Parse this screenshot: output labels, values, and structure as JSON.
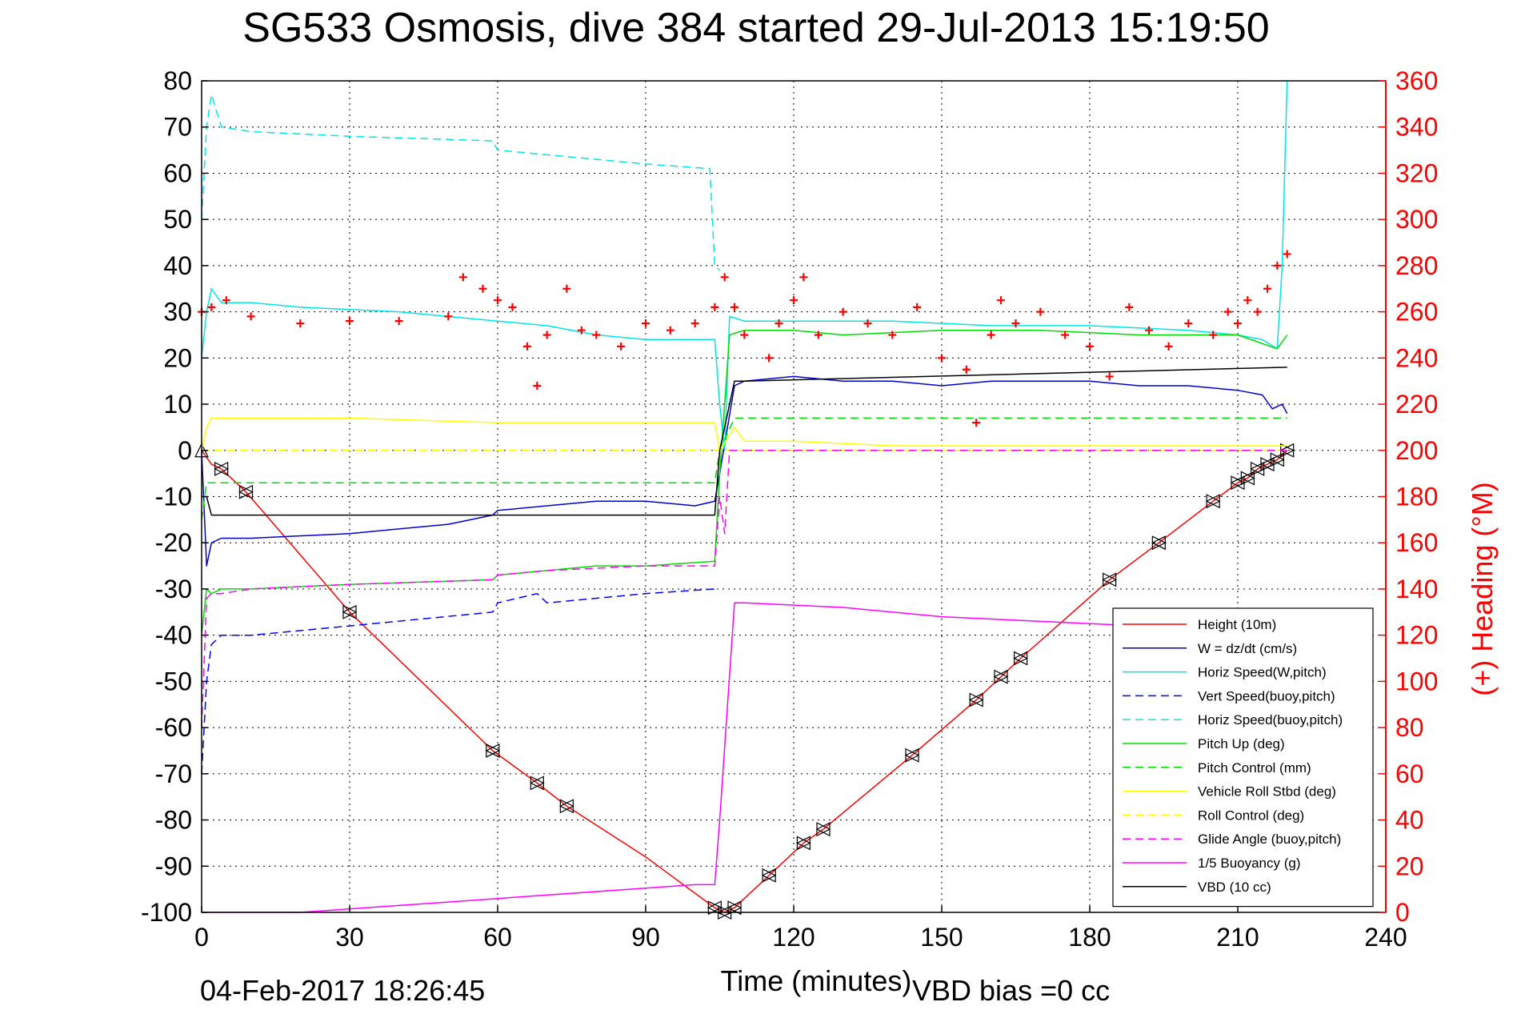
{
  "chart_data": {
    "type": "line",
    "title": "SG533 Osmosis, dive 384 started 29-Jul-2013 15:19:50",
    "xlabel": "Time (minutes)",
    "ylabel": "",
    "y2label": "(+) Heading (°M)",
    "xlim": [
      0,
      240
    ],
    "ylim": [
      -100,
      80
    ],
    "y2lim": [
      0,
      360
    ],
    "xticks": [
      "0",
      "30",
      "60",
      "90",
      "120",
      "150",
      "180",
      "210",
      "240"
    ],
    "yticks": [
      "80",
      "70",
      "60",
      "50",
      "40",
      "30",
      "20",
      "10",
      "0",
      "-10",
      "-20",
      "-30",
      "-40",
      "-50",
      "-60",
      "-70",
      "-80",
      "-90",
      "-100"
    ],
    "y2ticks": [
      "360",
      "340",
      "320",
      "300",
      "280",
      "260",
      "240",
      "220",
      "200",
      "180",
      "160",
      "140",
      "120",
      "100",
      "80",
      "60",
      "40",
      "20",
      "0"
    ],
    "grid": true,
    "legend_position": "bottom-right",
    "footer_date": "04-Feb-2017 18:26:45",
    "footer_note": "VBD bias =0 cc",
    "series": [
      {
        "name": "Height (10m)",
        "color": "#ff0000",
        "style": "solid",
        "x": [
          0,
          2,
          4,
          9,
          30,
          59,
          68,
          74,
          90,
          104,
          106,
          108,
          115,
          122,
          126,
          144,
          157,
          162,
          166,
          184,
          194,
          205,
          210,
          212,
          214,
          216,
          218,
          220
        ],
        "y": [
          0,
          -3,
          -4,
          -9,
          -35,
          -65,
          -72,
          -77,
          -88,
          -99,
          -100,
          -99,
          -92,
          -85,
          -82,
          -66,
          -54,
          -49,
          -45,
          -28,
          -20,
          -11,
          -7,
          -6,
          -4,
          -3,
          -2,
          0
        ]
      },
      {
        "name": "W = dz/dt (cm/s)",
        "color": "#0000cc",
        "style": "solid",
        "x": [
          0,
          1,
          2,
          4,
          10,
          30,
          50,
          59,
          60,
          70,
          80,
          90,
          100,
          104,
          105,
          108,
          110,
          120,
          130,
          140,
          150,
          160,
          170,
          180,
          190,
          200,
          210,
          215,
          217,
          219,
          220
        ],
        "y": [
          0,
          -25,
          -20,
          -19,
          -19,
          -18,
          -16,
          -14,
          -13,
          -12,
          -11,
          -11,
          -12,
          -11,
          -5,
          14,
          15,
          16,
          15,
          15,
          14,
          15,
          15,
          15,
          14,
          14,
          13,
          12,
          9,
          10,
          8
        ]
      },
      {
        "name": "Horiz Speed(W,pitch)",
        "color": "#00e6e6",
        "style": "solid",
        "x": [
          0,
          1,
          2,
          4,
          10,
          20,
          40,
          60,
          70,
          80,
          90,
          100,
          104,
          105,
          106,
          107,
          110,
          120,
          140,
          160,
          180,
          200,
          210,
          215,
          218,
          219,
          220
        ],
        "y": [
          20,
          30,
          35,
          32,
          32,
          31,
          30,
          28,
          27,
          25,
          24,
          24,
          24,
          10,
          0,
          29,
          28,
          28,
          28,
          27,
          27,
          26,
          25,
          24,
          22,
          40,
          80
        ]
      },
      {
        "name": "Vert Speed(buoy,pitch)",
        "color": "#0000ff",
        "style": "dashed",
        "x": [
          0,
          1,
          2,
          4,
          10,
          30,
          59,
          60,
          68,
          70,
          80,
          90,
          104
        ],
        "y": [
          -70,
          -50,
          -42,
          -40,
          -40,
          -38,
          -35,
          -33,
          -31,
          -33,
          -32,
          -31,
          -30
        ]
      },
      {
        "name": "Horiz Speed(buoy,pitch)",
        "color": "#00e6e6",
        "style": "dashed",
        "x": [
          0,
          1,
          2,
          4,
          10,
          30,
          59,
          60,
          70,
          80,
          90,
          103,
          104,
          105
        ],
        "y": [
          50,
          70,
          77,
          70,
          69,
          68,
          67,
          65,
          64,
          63,
          62,
          61,
          40,
          39
        ]
      },
      {
        "name": "Pitch Up (deg)",
        "color": "#00dd00",
        "style": "solid",
        "x": [
          0,
          1,
          2,
          4,
          10,
          30,
          59,
          60,
          70,
          80,
          90,
          104,
          105,
          107,
          110,
          120,
          130,
          150,
          170,
          190,
          210,
          218,
          220
        ],
        "y": [
          -40,
          -30,
          -31,
          -30,
          -30,
          -29,
          -28,
          -27,
          -26,
          -25,
          -25,
          -24,
          -5,
          25,
          26,
          26,
          25,
          26,
          26,
          25,
          25,
          22,
          25
        ]
      },
      {
        "name": "Pitch Control (mm)",
        "color": "#00dd00",
        "style": "dashed",
        "x": [
          0,
          1,
          2,
          104,
          105,
          108,
          220
        ],
        "y": [
          -15,
          -7,
          -7,
          -7,
          0,
          7,
          7
        ]
      },
      {
        "name": "Vehicle Roll Stbd (deg)",
        "color": "#ffff00",
        "style": "solid",
        "x": [
          0,
          1,
          2,
          4,
          10,
          30,
          60,
          80,
          104,
          105,
          108,
          110,
          120,
          140,
          160,
          180,
          200,
          210,
          215,
          218,
          220
        ],
        "y": [
          0,
          5,
          7,
          7,
          7,
          7,
          6,
          6,
          6,
          0,
          5,
          2,
          2,
          1,
          1,
          1,
          1,
          1,
          1,
          1,
          1
        ]
      },
      {
        "name": "Roll Control (deg)",
        "color": "#ffff00",
        "style": "dashed",
        "x": [
          0,
          2,
          104,
          105,
          220
        ],
        "y": [
          0,
          0,
          0,
          0,
          0
        ]
      },
      {
        "name": "Glide Angle (buoy,pitch)",
        "color": "#ff00ff",
        "style": "dashed",
        "x": [
          0,
          1,
          2,
          4,
          10,
          30,
          59,
          60,
          70,
          90,
          104,
          105,
          106,
          107,
          220
        ],
        "y": [
          -60,
          -32,
          -31,
          -31,
          -30,
          -29,
          -28,
          -27,
          -26,
          -25,
          -25,
          -10,
          -18,
          0,
          0
        ]
      },
      {
        "name": "1/5 Buoyancy (g)",
        "color": "#ff00ff",
        "style": "solid",
        "x": [
          0,
          1,
          20,
          60,
          100,
          104,
          105,
          108,
          110,
          130,
          150,
          170,
          190
        ],
        "y": [
          -100,
          -100,
          -100,
          -97,
          -94,
          -94,
          -80,
          -33,
          -33,
          -34,
          -36,
          -37,
          -38
        ]
      },
      {
        "name": "VBD (10 cc)",
        "color": "#000000",
        "style": "solid",
        "x": [
          0,
          1,
          2,
          104,
          105,
          108,
          110,
          220
        ],
        "y": [
          -10,
          -10,
          -14,
          -14,
          0,
          15,
          15,
          18
        ]
      },
      {
        "name": "Heading",
        "color": "#ff0000",
        "style": "markers",
        "axis": "right",
        "x": [
          0,
          2,
          5,
          10,
          20,
          30,
          40,
          50,
          53,
          57,
          60,
          63,
          66,
          68,
          70,
          74,
          77,
          80,
          85,
          90,
          95,
          100,
          104,
          106,
          108,
          110,
          115,
          117,
          120,
          122,
          125,
          130,
          135,
          140,
          145,
          150,
          155,
          157,
          160,
          162,
          165,
          170,
          175,
          180,
          184,
          188,
          192,
          196,
          200,
          205,
          208,
          210,
          212,
          214,
          216,
          218,
          220
        ],
        "y": [
          260,
          262,
          265,
          258,
          255,
          256,
          256,
          258,
          275,
          270,
          265,
          262,
          245,
          228,
          250,
          270,
          252,
          250,
          245,
          255,
          252,
          255,
          262,
          275,
          262,
          250,
          240,
          255,
          265,
          275,
          250,
          260,
          255,
          250,
          262,
          240,
          235,
          212,
          250,
          265,
          255,
          260,
          250,
          245,
          232,
          262,
          252,
          245,
          255,
          250,
          260,
          255,
          265,
          260,
          270,
          280,
          285
        ]
      }
    ]
  }
}
